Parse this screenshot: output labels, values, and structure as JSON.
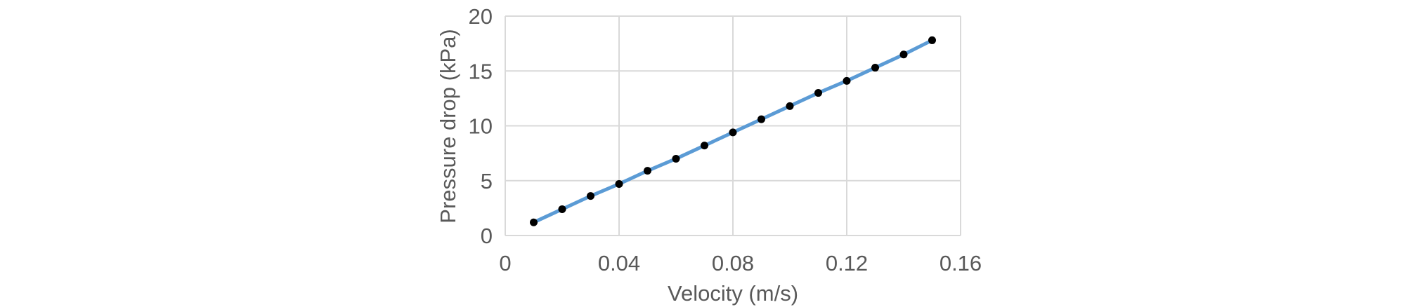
{
  "chart_data": {
    "type": "line",
    "title": "",
    "xlabel": "Velocity (m/s)",
    "ylabel": "Pressure drop (kPa)",
    "x": [
      0.01,
      0.02,
      0.03,
      0.04,
      0.05,
      0.06,
      0.07,
      0.08,
      0.09,
      0.1,
      0.11,
      0.12,
      0.13,
      0.14,
      0.15
    ],
    "y": [
      1.2,
      2.4,
      3.6,
      4.7,
      5.9,
      7.0,
      8.2,
      9.4,
      10.6,
      11.8,
      13.0,
      14.1,
      15.3,
      16.5,
      17.8
    ],
    "xlim": [
      0,
      0.16
    ],
    "ylim": [
      0,
      20
    ],
    "x_tick_values": [
      0,
      0.04,
      0.08,
      0.12,
      0.16
    ],
    "x_tick_labels": [
      "0",
      "0.04",
      "0.08",
      "0.12",
      "0.16"
    ],
    "y_tick_values": [
      0,
      5,
      10,
      15,
      20
    ],
    "y_tick_labels": [
      "0",
      "5",
      "10",
      "15",
      "20"
    ],
    "grid": true,
    "legend": "none",
    "marker": "circle",
    "colors": {
      "line": "#5B9BD5",
      "marker": "#000000",
      "gridline": "#D9D9D9",
      "axis_text": "#595959",
      "background": "#FFFFFF"
    }
  }
}
